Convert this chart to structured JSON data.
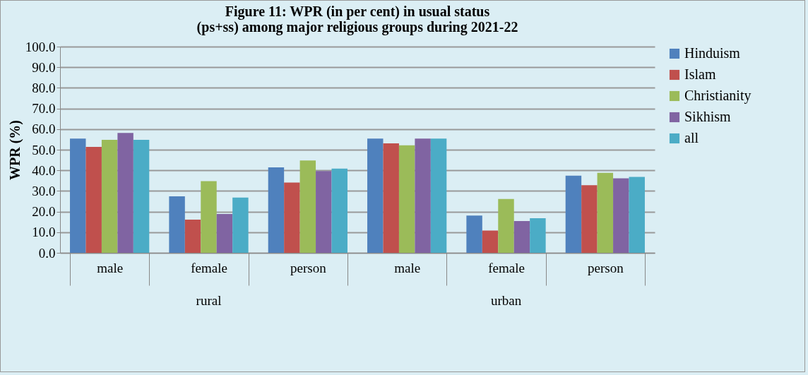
{
  "chart_data": {
    "type": "bar",
    "title": "Figure 11: WPR (in per cent) in usual status (ps+ss)  among major religious groups during 2021-22",
    "ylabel": "WPR (%)",
    "categories": [
      "male",
      "female",
      "person",
      "male",
      "female",
      "person"
    ],
    "annotations": [
      "rural",
      "urban"
    ],
    "series": [
      {
        "name": "Hinduism",
        "color": "#4f81bd",
        "values": [
          55.4,
          27.4,
          41.4,
          55.4,
          18.1,
          37.4
        ]
      },
      {
        "name": "Islam",
        "color": "#c0504d",
        "values": [
          51.4,
          16.1,
          34.1,
          53.1,
          10.8,
          32.8
        ]
      },
      {
        "name": "Christianity",
        "color": "#9bbb59",
        "values": [
          54.8,
          34.8,
          44.8,
          52.1,
          26.1,
          38.8
        ]
      },
      {
        "name": "Sikhism",
        "color": "#8064a2",
        "values": [
          58.1,
          18.8,
          39.6,
          55.4,
          15.4,
          36.1
        ]
      },
      {
        "name": "all",
        "color": "#4bacc6",
        "values": [
          54.8,
          26.8,
          40.8,
          55.4,
          16.8,
          36.8
        ]
      }
    ],
    "ylim": [
      0,
      100
    ],
    "yticks": [
      {
        "value": 0,
        "label": "0.0"
      },
      {
        "value": 10,
        "label": "10.0"
      },
      {
        "value": 20,
        "label": "20.0"
      },
      {
        "value": 30,
        "label": "30.0"
      },
      {
        "value": 40,
        "label": "40.0"
      },
      {
        "value": 50,
        "label": "50.0"
      },
      {
        "value": 60,
        "label": "60.0"
      },
      {
        "value": 70,
        "label": "70.0"
      },
      {
        "value": 80,
        "label": "80.0"
      },
      {
        "value": 90,
        "label": "90.0"
      },
      {
        "value": 100,
        "label": "100.0"
      }
    ],
    "grid": "y",
    "legend": "right"
  }
}
